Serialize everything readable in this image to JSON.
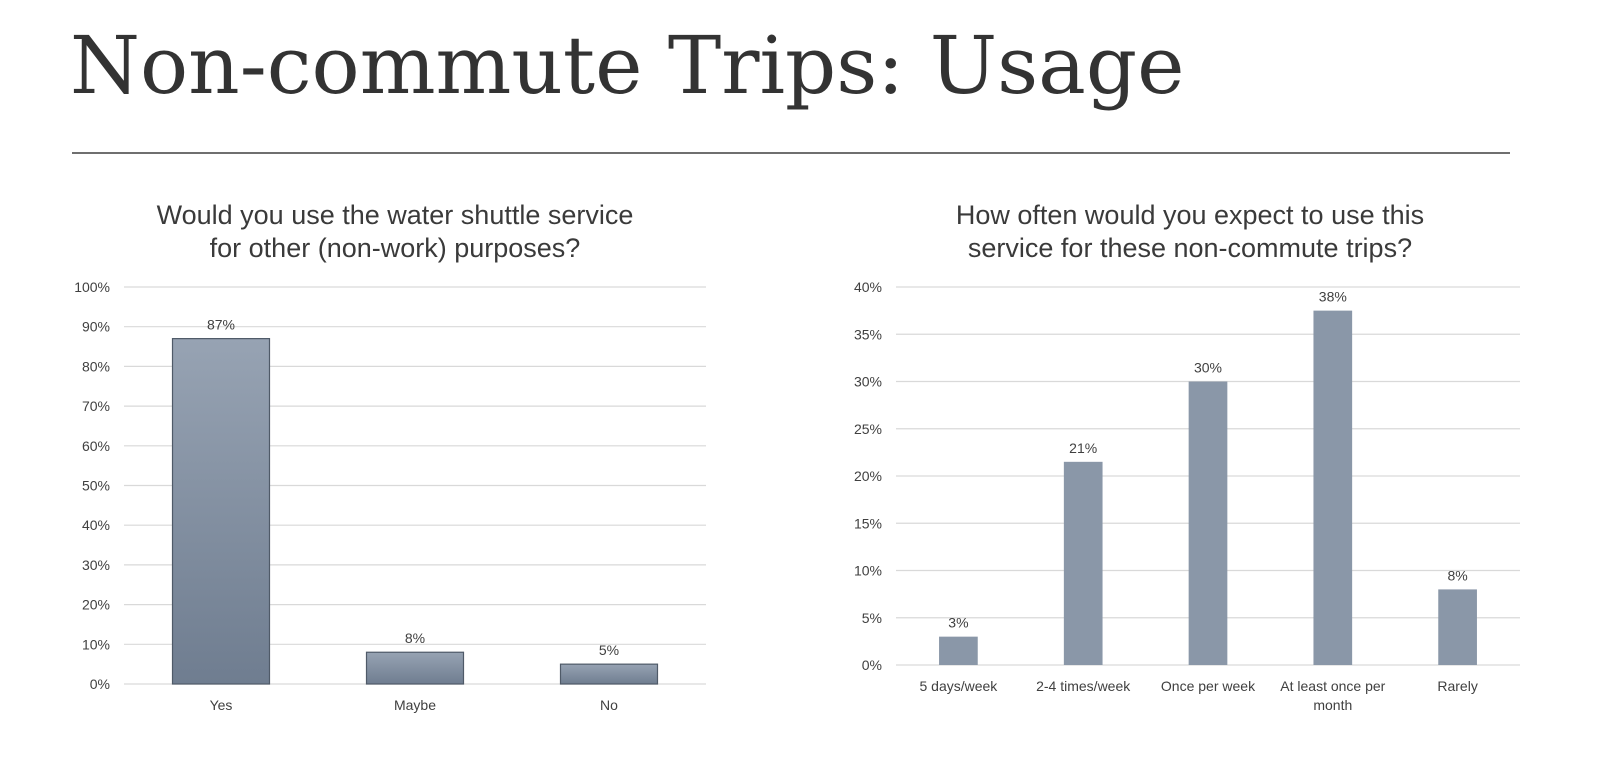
{
  "slide": {
    "title": "Non-commute Trips: Usage"
  },
  "colors": {
    "bar_left_top": "#97a3b3",
    "bar_left_bottom": "#6f7d90",
    "bar_right": "#8a97a8",
    "grid": "#d9d9d9",
    "text": "#404040"
  },
  "chart_data": [
    {
      "type": "bar",
      "title_lines": [
        "Would you use the water shuttle service",
        "for other (non-work) purposes?"
      ],
      "categories": [
        "Yes",
        "Maybe",
        "No"
      ],
      "values": [
        87,
        8,
        5
      ],
      "value_labels": [
        "87%",
        "8%",
        "5%"
      ],
      "ylim": [
        0,
        100
      ],
      "yticks": [
        0,
        10,
        20,
        30,
        40,
        50,
        60,
        70,
        80,
        90,
        100
      ],
      "ytick_labels": [
        "0%",
        "10%",
        "20%",
        "30%",
        "40%",
        "50%",
        "60%",
        "70%",
        "80%",
        "90%",
        "100%"
      ],
      "grid": true,
      "legend": "none"
    },
    {
      "type": "bar",
      "title_lines": [
        "How often would you expect to use this",
        "service for these non-commute trips?"
      ],
      "categories": [
        "5 days/week",
        "2-4 times/week",
        "Once per week",
        [
          "At least once per",
          "month"
        ],
        "Rarely"
      ],
      "values": [
        3,
        21.5,
        30,
        37.5,
        8
      ],
      "value_labels": [
        "3%",
        "21%",
        "30%",
        "38%",
        "8%"
      ],
      "ylim": [
        0,
        40
      ],
      "yticks": [
        0,
        5,
        10,
        15,
        20,
        25,
        30,
        35,
        40
      ],
      "ytick_labels": [
        "0%",
        "5%",
        "10%",
        "15%",
        "20%",
        "25%",
        "30%",
        "35%",
        "40%"
      ],
      "grid": true,
      "legend": "none"
    }
  ]
}
